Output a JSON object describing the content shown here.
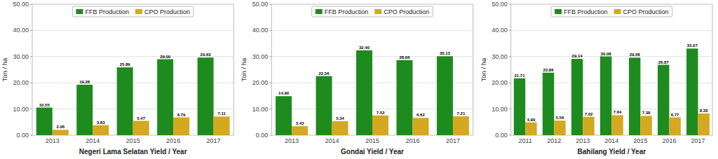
{
  "chart_data": [
    {
      "type": "bar",
      "x_label": "Negeri Lama Selatan Yield / Year",
      "y_label": "Ton / ha",
      "categories": [
        "2013",
        "2014",
        "2015",
        "2016",
        "2017"
      ],
      "series": [
        {
          "name": "FFB Production",
          "color": "#1e8b1e",
          "values": [
            10.55,
            19.28,
            25.89,
            29.0,
            29.63
          ],
          "value_labels": [
            "10.55",
            "19.28",
            "25.89",
            "29.00",
            "29.63"
          ]
        },
        {
          "name": "CPO Production",
          "color": "#d4a820",
          "values": [
            2.06,
            3.83,
            5.47,
            6.79,
            7.11
          ],
          "value_labels": [
            "2.06",
            "3.83",
            "5.47",
            "6.79",
            "7.11"
          ]
        }
      ],
      "ylim": [
        0,
        50
      ],
      "yticks": [
        {
          "value": 0,
          "label": "0.00"
        },
        {
          "value": 10,
          "label": "10.00"
        },
        {
          "value": 20,
          "label": "20.00"
        },
        {
          "value": 30,
          "label": "30.00"
        },
        {
          "value": 40,
          "label": "40.00"
        },
        {
          "value": 50,
          "label": "50.00"
        }
      ],
      "grid": true,
      "legend": "top",
      "data_labels": true
    },
    {
      "type": "bar",
      "x_label": "Gondai Yield / Year",
      "y_label": "Ton / ha",
      "categories": [
        "2013",
        "2014",
        "2015",
        "2016",
        "2017"
      ],
      "series": [
        {
          "name": "FFB Production",
          "color": "#1e8b1e",
          "values": [
            14.9,
            22.56,
            32.4,
            28.66,
            30.13
          ],
          "value_labels": [
            "14.90",
            "22.56",
            "32.40",
            "28.66",
            "30.13"
          ]
        },
        {
          "name": "CPO Production",
          "color": "#d4a820",
          "values": [
            3.43,
            5.34,
            7.53,
            6.62,
            7.21
          ],
          "value_labels": [
            "3.43",
            "5.34",
            "7.53",
            "6.62",
            "7.21"
          ]
        }
      ],
      "ylim": [
        0,
        50
      ],
      "yticks": [
        {
          "value": 0,
          "label": "0.00"
        },
        {
          "value": 10,
          "label": "10.00"
        },
        {
          "value": 20,
          "label": "20.00"
        },
        {
          "value": 30,
          "label": "30.00"
        },
        {
          "value": 40,
          "label": "40.00"
        },
        {
          "value": 50,
          "label": "50.00"
        }
      ],
      "grid": true,
      "legend": "top",
      "data_labels": true
    },
    {
      "type": "bar",
      "x_label": "Bahilang Yield / Year",
      "y_label": "Ton / ha",
      "categories": [
        "2011",
        "2012",
        "2013",
        "2014",
        "2015",
        "2016",
        "2017"
      ],
      "series": [
        {
          "name": "FFB Production",
          "color": "#1e8b1e",
          "values": [
            21.71,
            23.86,
            29.14,
            30.08,
            29.58,
            26.87,
            33.07
          ],
          "value_labels": [
            "21.71",
            "23.86",
            "29.14",
            "30.08",
            "29.58",
            "26.87",
            "33.07"
          ]
        },
        {
          "name": "CPO Production",
          "color": "#d4a820",
          "values": [
            4.9,
            5.56,
            7.02,
            7.64,
            7.38,
            6.77,
            8.3
          ],
          "value_labels": [
            "4.90",
            "5.56",
            "7.02",
            "7.64",
            "7.38",
            "6.77",
            "8.30"
          ]
        }
      ],
      "ylim": [
        0,
        50
      ],
      "yticks": [
        {
          "value": 0,
          "label": "0.00"
        },
        {
          "value": 10,
          "label": "10.00"
        },
        {
          "value": 20,
          "label": "20.00"
        },
        {
          "value": 30,
          "label": "30.00"
        },
        {
          "value": 40,
          "label": "40.00"
        },
        {
          "value": 50,
          "label": "50.00"
        }
      ],
      "grid": true,
      "legend": "top",
      "data_labels": true
    }
  ]
}
